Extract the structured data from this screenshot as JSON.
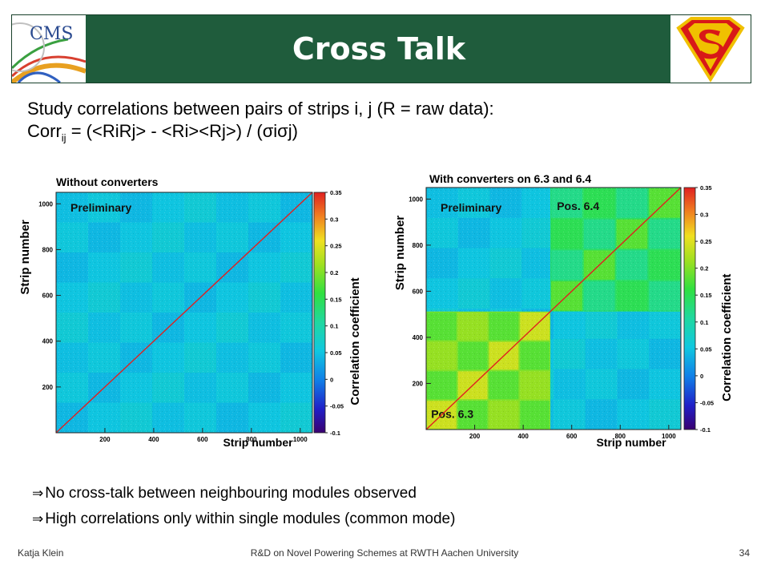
{
  "header": {
    "title": "Cross Talk",
    "logo_left_text": "CMS"
  },
  "intro": {
    "line1": "Study correlations between pairs of strips i, j (R = raw data):",
    "line2_prefix": "Corr",
    "line2_sub": "ij",
    "line2_formula": "= (<R",
    "line2_formula_full": "= (<RiRj> - <Ri><Rj>) / (σiσj)"
  },
  "chart_data": [
    {
      "type": "heatmap",
      "title": "Without converters",
      "annotation": "Preliminary",
      "xlabel": "Strip number",
      "ylabel": "Strip number",
      "zlabel": "Correlation coefficient",
      "xlim": [
        0,
        1050
      ],
      "ylim": [
        0,
        1050
      ],
      "xticks": [
        200,
        400,
        600,
        800,
        1000
      ],
      "yticks": [
        200,
        400,
        600,
        800,
        1000
      ],
      "zlim": [
        -0.1,
        0.35
      ],
      "zticks": [
        -0.1,
        -0.05,
        0,
        0.05,
        0.1,
        0.15,
        0.2,
        0.25,
        0.3,
        0.35
      ],
      "background_value": 0.04,
      "diagonal_value": 0.35,
      "high_regions": []
    },
    {
      "type": "heatmap",
      "title": "With converters on 6.3 and 6.4",
      "annotation": "Preliminary",
      "xlabel": "Strip number",
      "ylabel": "Strip number",
      "zlabel": "Correlation coefficient",
      "xlim": [
        0,
        1050
      ],
      "ylim": [
        0,
        1050
      ],
      "xticks": [
        200,
        400,
        600,
        800,
        1000
      ],
      "yticks": [
        200,
        400,
        600,
        800,
        1000
      ],
      "zlim": [
        -0.1,
        0.35
      ],
      "zticks": [
        -0.1,
        -0.05,
        0,
        0.05,
        0.1,
        0.15,
        0.2,
        0.25,
        0.3,
        0.35
      ],
      "background_value": 0.04,
      "diagonal_value": 0.35,
      "high_regions": [
        {
          "label": "Pos. 6.3",
          "x": [
            0,
            512
          ],
          "y": [
            0,
            512
          ],
          "value": 0.2
        },
        {
          "label": "Pos. 6.4",
          "x": [
            512,
            1050
          ],
          "y": [
            512,
            1050
          ],
          "value": 0.14
        }
      ]
    }
  ],
  "bullets": [
    "No cross-talk between neighbouring modules observed",
    "High correlations only within single modules (common mode)"
  ],
  "footer": {
    "left": "Katja Klein",
    "center": "R&D on Novel Powering Schemes at RWTH Aachen University",
    "right": "34"
  }
}
